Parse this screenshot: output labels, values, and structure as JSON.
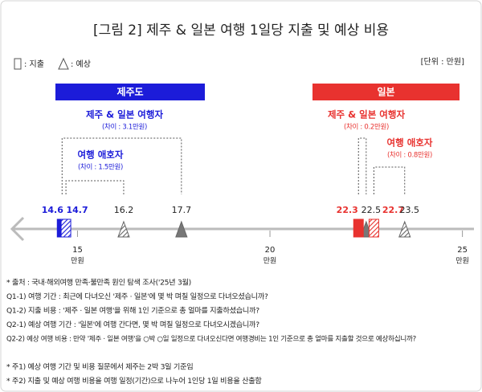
{
  "chart_data": {
    "type": "spend-vs-expected",
    "title": "[그림 2] 제주 & 일본 여행 1일당 지출 및 예상 비용",
    "legend": {
      "spend": ": 지출",
      "expected": ": 예상"
    },
    "unit_label": "[단위 : 만원]",
    "xlim": [
      13.3,
      25.3
    ],
    "xticks": [
      15,
      20,
      25
    ],
    "tick_unit": "만원",
    "groups": [
      {
        "name": "제주도",
        "color": "#1c1cd9",
        "segments": [
          {
            "name": "제주 & 일본 여행자",
            "difference_label": "(차이 : 3.1만원)",
            "spend": 14.6,
            "expected": 17.7
          },
          {
            "name": "여행 애호자",
            "difference_label": "(차이 : 1.5만원)",
            "spend": 14.7,
            "expected": 16.2
          }
        ]
      },
      {
        "name": "일본",
        "color": "#e8322f",
        "segments": [
          {
            "name": "제주 & 일본 여행자",
            "difference_label": "(차이 : 0.2만원)",
            "spend": 22.3,
            "expected": 22.5
          },
          {
            "name": "여행 애호자",
            "difference_label": "(차이 : 0.8만원)",
            "spend": 22.7,
            "expected": 23.5
          }
        ]
      }
    ],
    "notes": [
      "* 출처 : 국내·해외여행 만족·불만족 원인 탐색 조사('25년 3월)",
      "Q1-1) 여행 기간 : 최근에 다녀오신 '제주 · 일본'에 몇 박 며칠 일정으로 다녀오셨습니까?",
      "Q1-2) 지출 비용 : '제주 · 일본 여행'을 위해 1인 기준으로 총 얼마를 지출하셨습니까?",
      "Q2-1) 예상 여행 기간 : '일본'에 여행 간다면, 몇 박 며칠 일정으로 다녀오시겠습니까?",
      "Q2-2) 예상 여행 비용 : 만약 '제주 · 일본 여행'을 ○박 ○일 일정으로 다녀오신다면 여행경비는 1인 기준으로 총 얼마를 지출할 것으로 예상하십니까?",
      "* 주1) 예상 여행 기간 및 비용 질문에서 제주는 2박 3일 기준임",
      "* 주2) 지출 및 예상 여행 비용을 여행 일정(기간)으로 나누어 1인당 1일 비용을 산출함"
    ]
  }
}
